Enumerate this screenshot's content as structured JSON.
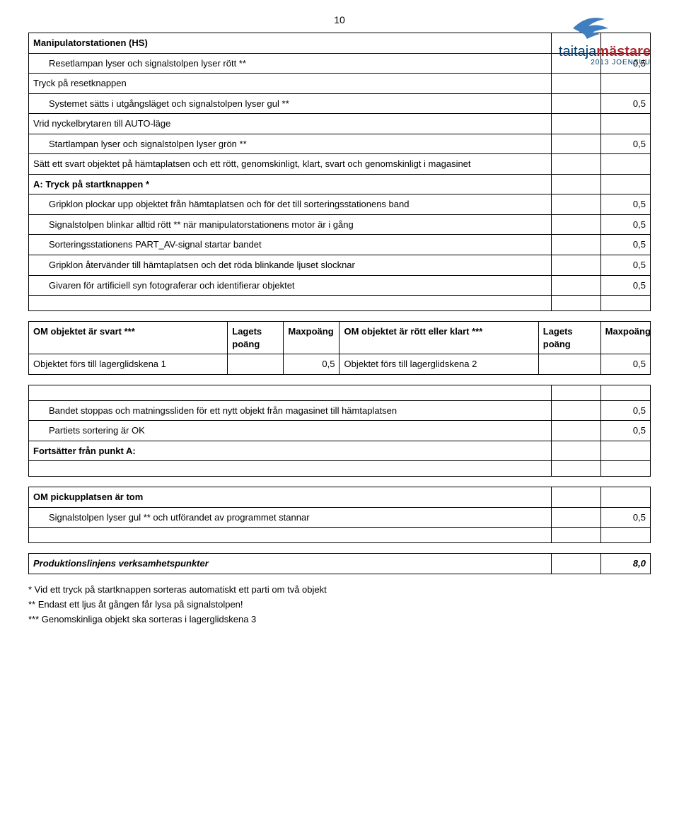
{
  "page_number": "10",
  "logo": {
    "word1": "taitaja",
    "word2": "mästare",
    "sub": "2013 JOENSUU",
    "blue": "#003a6a",
    "red": "#a8282d",
    "bird": "#3f7fbf"
  },
  "table1": {
    "rows": [
      {
        "text": "Manipulatorstationen (HS)",
        "bold": true,
        "val1": "",
        "val2": ""
      },
      {
        "text": "Resetlampan lyser och signalstolpen lyser rött **",
        "indent": true,
        "val1": "",
        "val2": "0,5"
      },
      {
        "text": "Tryck på resetknappen",
        "val1": "",
        "val2": ""
      },
      {
        "text": "Systemet sätts i utgångsläget och signalstolpen lyser gul **",
        "indent": true,
        "val1": "",
        "val2": "0,5"
      },
      {
        "text": "Vrid nyckelbrytaren till AUTO-läge",
        "val1": "",
        "val2": ""
      },
      {
        "text": "Startlampan lyser och signalstolpen lyser grön **",
        "indent": true,
        "val1": "",
        "val2": "0,5"
      },
      {
        "text": "Sätt ett svart objektet på hämtaplatsen och ett rött, genomskinligt, klart, svart och genomskinligt i magasinet",
        "val1": "",
        "val2": ""
      },
      {
        "text": "A: Tryck på startknappen *",
        "bold": true,
        "val1": "",
        "val2": ""
      },
      {
        "text": "Gripklon plockar upp objektet från hämtaplatsen och för det till sorteringsstationens band",
        "indent": true,
        "val1": "",
        "val2": "0,5"
      },
      {
        "text": "Signalstolpen blinkar alltid rött ** när manipulatorstationens motor är i gång",
        "indent": true,
        "val1": "",
        "val2": "0,5"
      },
      {
        "text": "Sorteringsstationens PART_AV-signal startar bandet",
        "indent": true,
        "val1": "",
        "val2": "0,5"
      },
      {
        "text": "Gripklon återvänder till hämtaplatsen och det röda blinkande ljuset slocknar",
        "indent": true,
        "val1": "",
        "val2": "0,5"
      },
      {
        "text": "Givaren för artificiell syn fotograferar och identifierar objektet",
        "indent": true,
        "val1": "",
        "val2": "0,5"
      },
      {
        "text": "",
        "val1": "",
        "val2": "",
        "empty": true
      }
    ]
  },
  "table2": {
    "headers": {
      "c1": "OM objektet är svart ***",
      "c2": "Lagets poäng",
      "c3": "Maxpoäng",
      "c4": "OM objektet är rött eller klart ***",
      "c5": "Lagets poäng",
      "c6": "Maxpoäng"
    },
    "row": {
      "c1": "Objektet förs till lagerglidskena 1",
      "c2": "",
      "c3": "0,5",
      "c4": "Objektet förs till lagerglidskena 2",
      "c5": "",
      "c6": "0,5"
    }
  },
  "table3": {
    "rows": [
      {
        "text": "",
        "val1": "",
        "val2": "",
        "empty": true
      },
      {
        "text": "Bandet stoppas och matningssliden för ett nytt objekt från magasinet till hämtaplatsen",
        "indent": true,
        "val1": "",
        "val2": "0,5"
      },
      {
        "text": "Partiets sortering är OK",
        "indent": true,
        "val1": "",
        "val2": "0,5"
      },
      {
        "text": "Fortsätter från punkt A:",
        "bold": true,
        "val1": "",
        "val2": ""
      },
      {
        "text": "",
        "val1": "",
        "val2": "",
        "empty": true
      }
    ]
  },
  "table4": {
    "rows": [
      {
        "text": "OM pickupplatsen är tom",
        "bold": true,
        "val1": "",
        "val2": ""
      },
      {
        "text": "Signalstolpen lyser gul ** och utförandet av programmet stannar",
        "indent": true,
        "val1": "",
        "val2": "0,5"
      },
      {
        "text": "",
        "val1": "",
        "val2": "",
        "empty": true
      }
    ]
  },
  "table5": {
    "rows": [
      {
        "text": "Produktionslinjens verksamhetspunkter",
        "bold": true,
        "italic": true,
        "val1": "",
        "val2": "8,0",
        "val2_bold": true
      }
    ]
  },
  "footnotes": [
    "* Vid ett tryck på startknappen sorteras automatiskt ett parti om två objekt",
    "** Endast ett ljus åt gången får lysa på signalstolpen!",
    "*** Genomskinliga objekt ska sorteras i lagerglidskena 3"
  ]
}
